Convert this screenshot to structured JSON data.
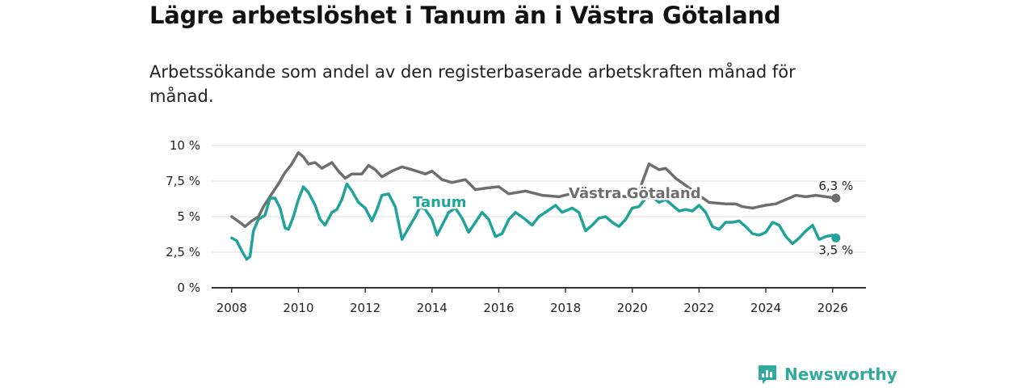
{
  "title": "Lägre arbetslöshet i Tanum än i Västra Götaland",
  "subtitle": "Arbetssökande som andel av den registerbaserade arbetskraften månad för månad.",
  "brand": "Newsworthy",
  "colors": {
    "tanum": "#20a39a",
    "vg": "#6e6e6e",
    "grid": "#dddddd",
    "axis": "#333333",
    "brand": "#31a99c"
  },
  "chart_data": {
    "type": "line",
    "title": "Lägre arbetslöshet i Tanum än i Västra Götaland",
    "xlabel": "",
    "ylabel": "",
    "xlim": [
      2007.4,
      2027.0
    ],
    "ylim": [
      0,
      10
    ],
    "x_ticks": [
      2008,
      2010,
      2012,
      2014,
      2016,
      2018,
      2020,
      2022,
      2024,
      2026
    ],
    "x_tick_labels": [
      "2008",
      "2010",
      "2012",
      "2014",
      "2016",
      "2018",
      "2020",
      "2022",
      "2024",
      "2026"
    ],
    "y_ticks": [
      0,
      2.5,
      5,
      7.5,
      10
    ],
    "y_tick_labels": [
      "0 %",
      "2,5 %",
      "5 %",
      "7,5 %",
      "10 %"
    ],
    "series": [
      {
        "name": "Västra Götaland",
        "end_label": "6,3 %",
        "x": [
          2008.0,
          2008.3,
          2008.4,
          2008.6,
          2008.8,
          2008.95,
          2009.2,
          2009.4,
          2009.6,
          2009.8,
          2010.0,
          2010.15,
          2010.3,
          2010.5,
          2010.7,
          2011.0,
          2011.2,
          2011.4,
          2011.6,
          2011.9,
          2012.1,
          2012.3,
          2012.5,
          2012.8,
          2013.1,
          2013.4,
          2013.8,
          2014.0,
          2014.3,
          2014.6,
          2015.0,
          2015.3,
          2015.6,
          2016.0,
          2016.3,
          2016.8,
          2017.3,
          2017.8,
          2018.3,
          2018.8,
          2019.3,
          2019.8,
          2020.2,
          2020.5,
          2020.8,
          2021.0,
          2021.3,
          2021.6,
          2022.0,
          2022.3,
          2022.8,
          2023.1,
          2023.3,
          2023.6,
          2024.0,
          2024.3,
          2024.6,
          2024.9,
          2025.2,
          2025.5,
          2025.8,
          2026.1
        ],
        "values": [
          5.0,
          4.5,
          4.3,
          4.7,
          5.0,
          5.7,
          6.6,
          7.3,
          8.1,
          8.7,
          9.5,
          9.2,
          8.7,
          8.8,
          8.4,
          8.8,
          8.2,
          7.7,
          8.0,
          8.0,
          8.6,
          8.3,
          7.8,
          8.2,
          8.5,
          8.3,
          8.0,
          8.2,
          7.6,
          7.4,
          7.6,
          6.9,
          7.0,
          7.1,
          6.6,
          6.8,
          6.5,
          6.4,
          6.7,
          6.4,
          6.6,
          6.4,
          6.8,
          8.7,
          8.3,
          8.4,
          7.7,
          7.2,
          6.5,
          6.0,
          5.9,
          5.9,
          5.7,
          5.6,
          5.8,
          5.9,
          6.2,
          6.5,
          6.4,
          6.5,
          6.4,
          6.3
        ]
      },
      {
        "name": "Tanum",
        "end_label": "3,5 %",
        "x": [
          2008.0,
          2008.15,
          2008.3,
          2008.45,
          2008.55,
          2008.65,
          2008.8,
          2009.0,
          2009.15,
          2009.3,
          2009.45,
          2009.6,
          2009.7,
          2009.85,
          2010.0,
          2010.15,
          2010.3,
          2010.5,
          2010.65,
          2010.8,
          2011.0,
          2011.15,
          2011.3,
          2011.45,
          2011.6,
          2011.8,
          2012.0,
          2012.2,
          2012.35,
          2012.5,
          2012.7,
          2012.9,
          2013.1,
          2013.3,
          2013.5,
          2013.65,
          2013.8,
          2014.0,
          2014.15,
          2014.35,
          2014.5,
          2014.7,
          2014.9,
          2015.1,
          2015.3,
          2015.5,
          2015.7,
          2015.9,
          2016.1,
          2016.3,
          2016.5,
          2016.8,
          2017.0,
          2017.2,
          2017.4,
          2017.7,
          2017.9,
          2018.2,
          2018.4,
          2018.6,
          2018.8,
          2019.0,
          2019.2,
          2019.4,
          2019.6,
          2019.8,
          2020.0,
          2020.2,
          2020.4,
          2020.6,
          2020.8,
          2021.0,
          2021.2,
          2021.4,
          2021.6,
          2021.8,
          2022.0,
          2022.2,
          2022.4,
          2022.6,
          2022.8,
          2023.0,
          2023.2,
          2023.4,
          2023.6,
          2023.8,
          2024.0,
          2024.2,
          2024.4,
          2024.6,
          2024.8,
          2025.0,
          2025.2,
          2025.4,
          2025.6,
          2025.8,
          2026.0,
          2026.1
        ],
        "values": [
          3.5,
          3.3,
          2.6,
          2.0,
          2.2,
          4.0,
          4.8,
          5.1,
          6.3,
          6.3,
          5.6,
          4.2,
          4.1,
          5.0,
          6.2,
          7.1,
          6.7,
          5.8,
          4.8,
          4.4,
          5.3,
          5.5,
          6.2,
          7.3,
          6.8,
          6.0,
          5.6,
          4.7,
          5.5,
          6.5,
          6.6,
          5.7,
          3.4,
          4.2,
          5.0,
          5.7,
          5.5,
          4.8,
          3.7,
          4.6,
          5.3,
          5.6,
          4.9,
          3.9,
          4.6,
          5.3,
          4.8,
          3.6,
          3.8,
          4.8,
          5.3,
          4.8,
          4.4,
          5.0,
          5.3,
          5.8,
          5.3,
          5.6,
          5.3,
          4.0,
          4.4,
          4.9,
          5.0,
          4.6,
          4.3,
          4.8,
          5.6,
          5.7,
          6.3,
          6.4,
          6.0,
          6.2,
          5.8,
          5.4,
          5.5,
          5.4,
          5.8,
          5.3,
          4.3,
          4.1,
          4.6,
          4.6,
          4.7,
          4.3,
          3.8,
          3.7,
          3.9,
          4.6,
          4.4,
          3.6,
          3.1,
          3.5,
          4.0,
          4.4,
          3.4,
          3.6,
          3.7,
          3.5
        ]
      }
    ]
  }
}
